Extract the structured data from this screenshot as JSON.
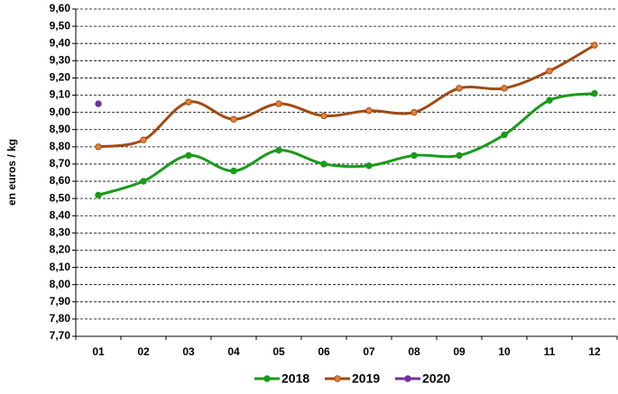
{
  "chart_data": {
    "type": "line",
    "y_label": "en euros / kg",
    "categories": [
      "01",
      "02",
      "03",
      "04",
      "05",
      "06",
      "07",
      "08",
      "09",
      "10",
      "11",
      "12"
    ],
    "series": [
      {
        "name": "2018",
        "color": "#1a9a1a",
        "marker_fill": "#1a9a1a",
        "values": [
          8.52,
          8.6,
          8.75,
          8.66,
          8.78,
          8.7,
          8.69,
          8.75,
          8.75,
          8.87,
          9.07,
          9.11
        ]
      },
      {
        "name": "2019",
        "color": "#a04a14",
        "marker_fill": "#e8823c",
        "values": [
          8.8,
          8.84,
          9.06,
          8.96,
          9.05,
          8.98,
          9.01,
          9.0,
          9.14,
          9.14,
          9.24,
          9.39
        ]
      },
      {
        "name": "2020",
        "color": "#7030a0",
        "marker_fill": "#7030a0",
        "values": [
          9.05,
          null,
          null,
          null,
          null,
          null,
          null,
          null,
          null,
          null,
          null,
          null
        ]
      }
    ],
    "ylim": [
      7.7,
      9.6
    ],
    "yticks": [
      {
        "value": 7.7,
        "label": "7,70"
      },
      {
        "value": 7.8,
        "label": "7,80"
      },
      {
        "value": 7.9,
        "label": "7,90"
      },
      {
        "value": 8.0,
        "label": "8,00"
      },
      {
        "value": 8.1,
        "label": "8,10"
      },
      {
        "value": 8.2,
        "label": "8,20"
      },
      {
        "value": 8.3,
        "label": "8,30"
      },
      {
        "value": 8.4,
        "label": "8,40"
      },
      {
        "value": 8.5,
        "label": "8,50"
      },
      {
        "value": 8.6,
        "label": "8,60"
      },
      {
        "value": 8.7,
        "label": "8,70"
      },
      {
        "value": 8.8,
        "label": "8,80"
      },
      {
        "value": 8.9,
        "label": "8,90"
      },
      {
        "value": 9.0,
        "label": "9,00"
      },
      {
        "value": 9.1,
        "label": "9,10"
      },
      {
        "value": 9.2,
        "label": "9,20"
      },
      {
        "value": 9.3,
        "label": "9,30"
      },
      {
        "value": 9.4,
        "label": "9,40"
      },
      {
        "value": 9.5,
        "label": "9,50"
      },
      {
        "value": 9.6,
        "label": "9,60"
      }
    ],
    "grid": true,
    "smooth": true,
    "legend": "bottom"
  }
}
